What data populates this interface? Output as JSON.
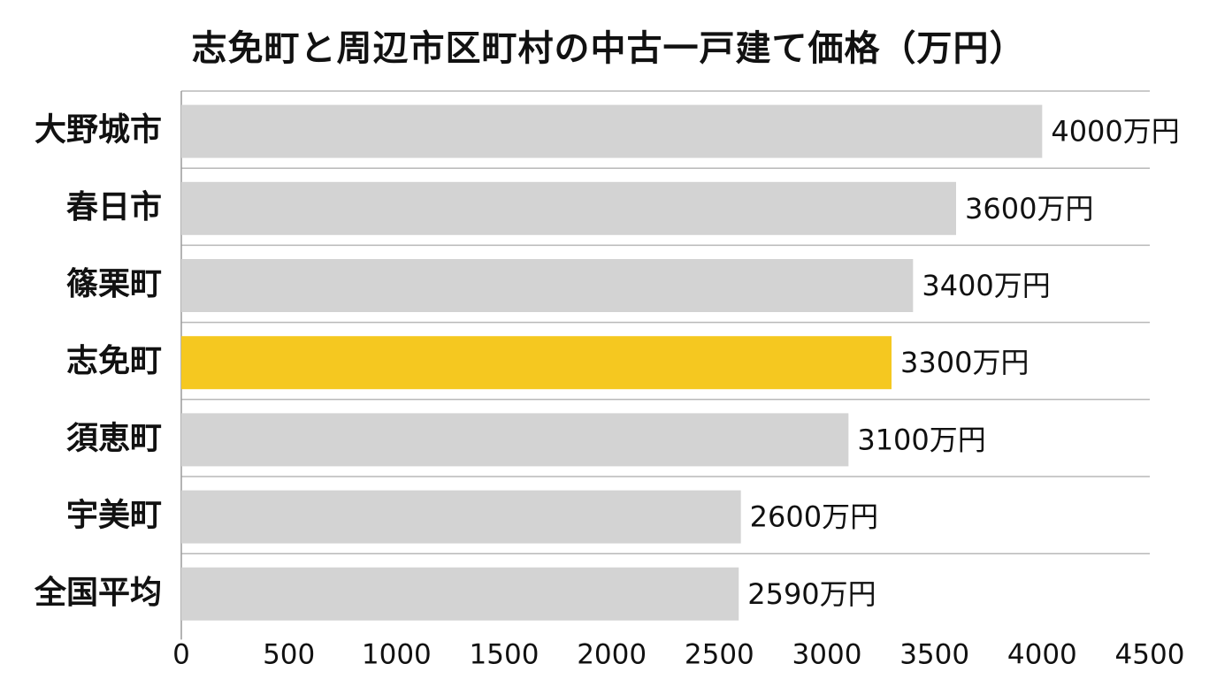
{
  "chart_data": {
    "type": "bar",
    "orientation": "horizontal",
    "title": "志免町と周辺市区町村の中古一戸建て価格（万円）",
    "xlabel": "",
    "ylabel": "",
    "categories": [
      "大野城市",
      "春日市",
      "篠栗町",
      "志免町",
      "須恵町",
      "宇美町",
      "全国平均"
    ],
    "values": [
      4000,
      3600,
      3400,
      3300,
      3100,
      2600,
      2590
    ],
    "value_labels": [
      "4000万円",
      "3600万円",
      "3400万円",
      "3300万円",
      "3100万円",
      "2600万円",
      "2590万円"
    ],
    "highlight_category": "志免町",
    "colors": {
      "default_bar": "#d3d3d3",
      "highlight_bar": "#f5c820",
      "row_line": "#b8b8b8",
      "axis_line": "#9a9a9a",
      "text": "#111111"
    },
    "xlim": [
      0,
      4500
    ],
    "xticks": [
      0,
      500,
      1000,
      1500,
      2000,
      2500,
      3000,
      3500,
      4000,
      4500
    ],
    "grid": false,
    "legend": "none"
  }
}
